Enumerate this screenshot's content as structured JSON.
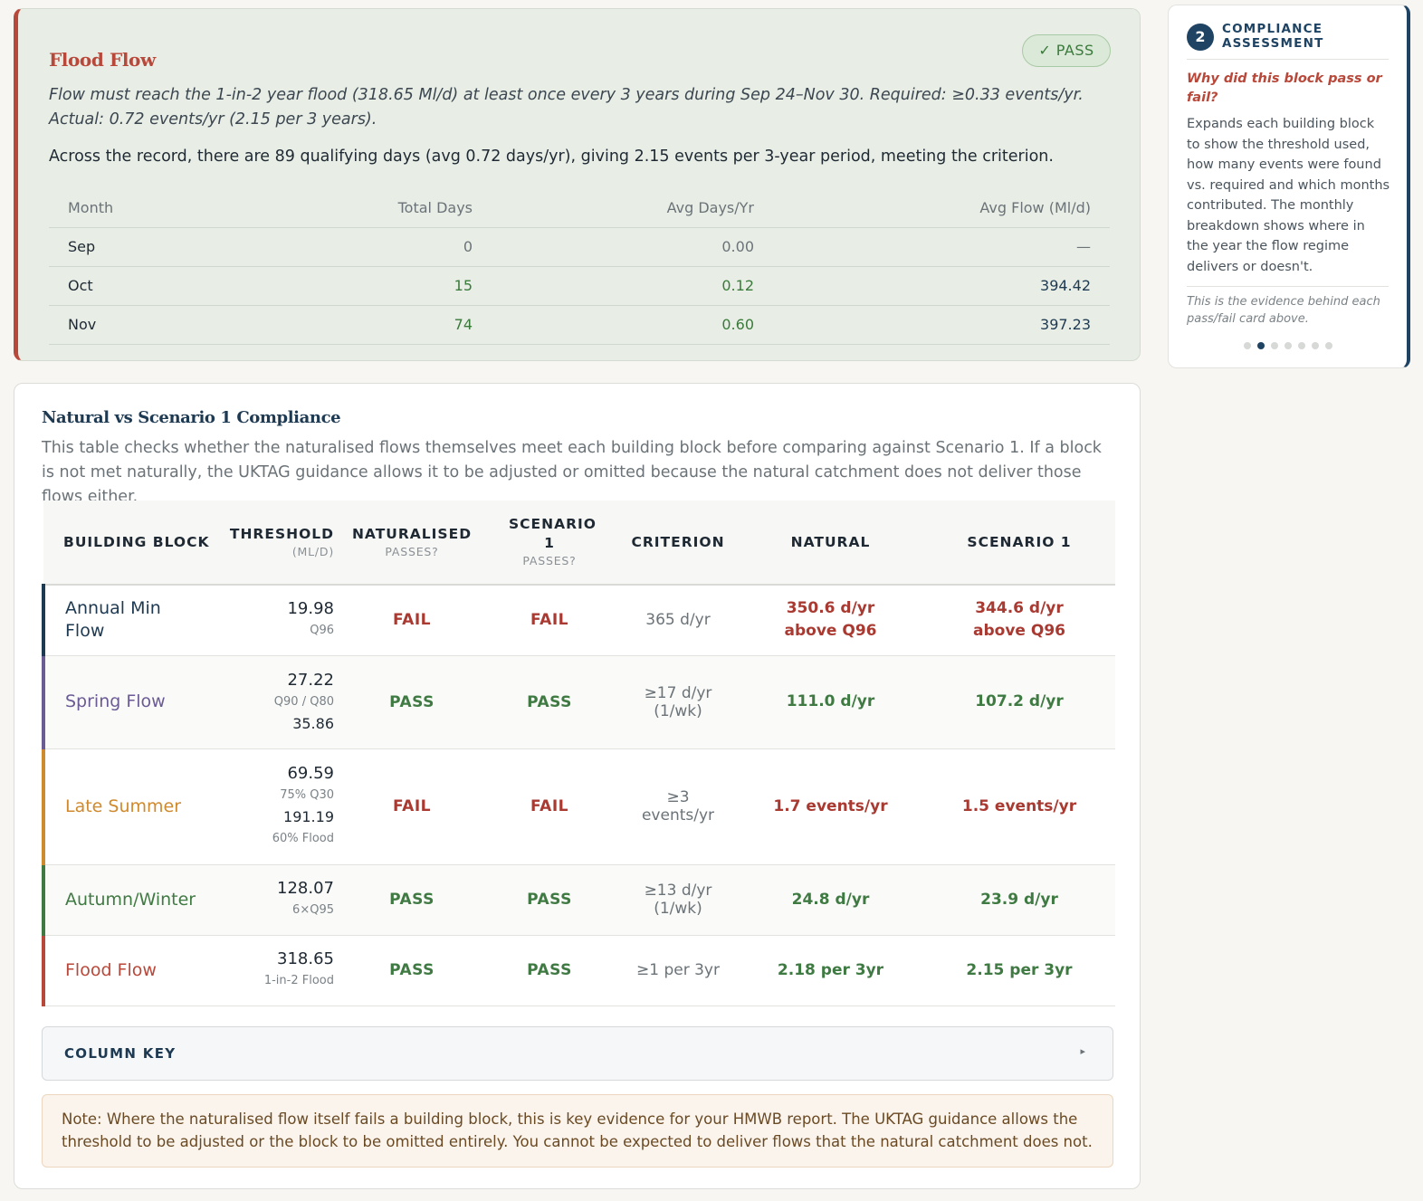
{
  "flood": {
    "title": "Flood Flow",
    "status": "✓ PASS",
    "description": "Flow must reach the 1-in-2 year flood (318.65 Ml/d) at least once every 3 years during Sep 24–Nov 30. Required: ≥0.33 events/yr. Actual: 0.72 events/yr (2.15 per 3 years).",
    "summary": "Across the record, there are 89 qualifying days (avg 0.72 days/yr), giving 2.15 events per 3-year period, meeting the criterion.",
    "columns": [
      "Month",
      "Total Days",
      "Avg Days/Yr",
      "Avg Flow (Ml/d)"
    ],
    "rows": [
      {
        "month": "Sep",
        "total": "0",
        "avg": "0.00",
        "flow": "—"
      },
      {
        "month": "Oct",
        "total": "15",
        "avg": "0.12",
        "flow": "394.42"
      },
      {
        "month": "Nov",
        "total": "74",
        "avg": "0.60",
        "flow": "397.23"
      }
    ]
  },
  "sidebar": {
    "step": "2",
    "heading": "COMPLIANCE ASSESSMENT",
    "question": "Why did this block pass or fail?",
    "body": "Expands each building block to show the threshold used, how many events were found vs. required and which months contributed. The monthly breakdown shows where in the year the flow regime delivers or doesn't.",
    "footnote": "This is the evidence behind each pass/fail card above.",
    "dots_total": 7,
    "dots_active": 1
  },
  "compliance": {
    "title": "Natural vs Scenario 1 Compliance",
    "description": "This table checks whether the naturalised flows themselves meet each building block before comparing against Scenario 1. If a block is not met naturally, the UKTAG guidance allows it to be adjusted or omitted because the natural catchment does not deliver those flows either.",
    "headers": {
      "block": "BUILDING BLOCK",
      "threshold": "THRESHOLD",
      "threshold_sub": "(ML/D)",
      "naturalised": "NATURALISED",
      "naturalised_sub": "PASSES?",
      "scenario": "SCENARIO 1",
      "scenario_sub": "PASSES?",
      "criterion": "CRITERION",
      "natural": "NATURAL",
      "scenario_result": "SCENARIO 1"
    },
    "rows": [
      {
        "block": "Annual Min Flow",
        "color": "#1e3a52",
        "thr1": "19.98",
        "thr_sub": "Q96",
        "thr2": "",
        "thr2_sub": "",
        "nat": "FAIL",
        "scn": "FAIL",
        "crit": "365 d/yr",
        "natural": "350.6 d/yr above Q96",
        "scenario": "344.6 d/yr above Q96"
      },
      {
        "block": "Spring Flow",
        "color": "#6b5b95",
        "thr1": "27.22",
        "thr_sub": "Q90 / Q80",
        "thr2": "35.86",
        "thr2_sub": "",
        "nat": "PASS",
        "scn": "PASS",
        "crit": "≥17 d/yr (1/wk)",
        "natural": "111.0 d/yr",
        "scenario": "107.2 d/yr"
      },
      {
        "block": "Late Summer",
        "color": "#d08a2e",
        "thr1": "69.59",
        "thr_sub": "75% Q30",
        "thr2": "191.19",
        "thr2_sub": "60% Flood",
        "nat": "FAIL",
        "scn": "FAIL",
        "crit": "≥3 events/yr",
        "natural": "1.7 events/yr",
        "scenario": "1.5 events/yr"
      },
      {
        "block": "Autumn/Winter",
        "color": "#3f7a43",
        "thr1": "128.07",
        "thr_sub": "6×Q95",
        "thr2": "",
        "thr2_sub": "",
        "nat": "PASS",
        "scn": "PASS",
        "crit": "≥13 d/yr (1/wk)",
        "natural": "24.8 d/yr",
        "scenario": "23.9 d/yr"
      },
      {
        "block": "Flood Flow",
        "color": "#b8483a",
        "thr1": "318.65",
        "thr_sub": "1-in-2 Flood",
        "thr2": "",
        "thr2_sub": "",
        "nat": "PASS",
        "scn": "PASS",
        "crit": "≥1 per 3yr",
        "natural": "2.18 per 3yr",
        "scenario": "2.15 per 3yr"
      }
    ],
    "column_key": "COLUMN KEY",
    "column_key_arrow": "▸",
    "note": "Note: Where the naturalised flow itself fails a building block, this is key evidence for your HMWB report. The UKTAG guidance allows the threshold to be adjusted or the block to be omitted entirely. You cannot be expected to deliver flows that the natural catchment does not."
  }
}
